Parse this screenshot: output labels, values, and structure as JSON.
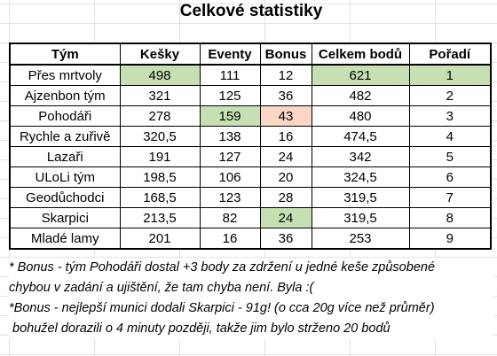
{
  "title": "Celkové statistiky",
  "columns": [
    "Tým",
    "Kešky",
    "Eventy",
    "Bonus",
    "Celkem bodů",
    "Pořadí"
  ],
  "rows": [
    {
      "team": "Přes mrtvoly",
      "kesky": "498",
      "eventy": "111",
      "bonus": "12",
      "celkem": "621",
      "poradi": "1"
    },
    {
      "team": "Ajzenbon tým",
      "kesky": "321",
      "eventy": "125",
      "bonus": "36",
      "celkem": "482",
      "poradi": "2"
    },
    {
      "team": "Pohodáři",
      "kesky": "278",
      "eventy": "159",
      "bonus": "43",
      "celkem": "480",
      "poradi": "3"
    },
    {
      "team": "Rychle a zuřivě",
      "kesky": "320,5",
      "eventy": "138",
      "bonus": "16",
      "celkem": "474,5",
      "poradi": "4"
    },
    {
      "team": "Lazaři",
      "kesky": "191",
      "eventy": "127",
      "bonus": "24",
      "celkem": "342",
      "poradi": "5"
    },
    {
      "team": "ULoLi tým",
      "kesky": "198,5",
      "eventy": "106",
      "bonus": "20",
      "celkem": "324,5",
      "poradi": "6"
    },
    {
      "team": "Geodůchodci",
      "kesky": "168,5",
      "eventy": "123",
      "bonus": "28",
      "celkem": "319,5",
      "poradi": "7"
    },
    {
      "team": "Skarpici",
      "kesky": "213,5",
      "eventy": "82",
      "bonus": "24",
      "celkem": "319,5",
      "poradi": "8"
    },
    {
      "team": "Mladé lamy",
      "kesky": "201",
      "eventy": "16",
      "bonus": "36",
      "celkem": "253",
      "poradi": "9"
    }
  ],
  "highlight_colors": {
    "green": "#c6e0b4",
    "pink": "#fbd5c5"
  },
  "notes": [
    "* Bonus - tým Pohodáři dostal +3 body za zdržení u jedné keše způsobené",
    "chybou v zadání a ujištění, že tam chyba není. Byla :(",
    "*Bonus - nejlepší munici dodali Skarpici - 91g! (o cca 20g více než průměr)",
    " bohužel dorazili o 4 minuty později, takže jim bylo strženo 20 bodů"
  ]
}
